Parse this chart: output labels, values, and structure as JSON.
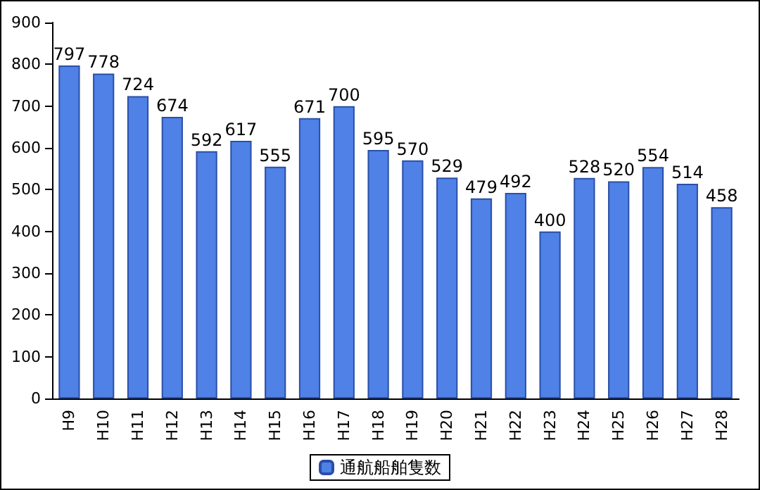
{
  "chart_data": {
    "type": "bar",
    "categories": [
      "H9",
      "H10",
      "H11",
      "H12",
      "H13",
      "H14",
      "H15",
      "H16",
      "H17",
      "H18",
      "H19",
      "H20",
      "H21",
      "H22",
      "H23",
      "H24",
      "H25",
      "H26",
      "H27",
      "H28"
    ],
    "series": [
      {
        "name": "通航船舶隻数",
        "color": "#4f81e6",
        "values": [
          797,
          778,
          724,
          674,
          592,
          617,
          555,
          671,
          700,
          595,
          570,
          529,
          479,
          492,
          400,
          528,
          520,
          554,
          514,
          458
        ]
      }
    ],
    "ylim": [
      0,
      900
    ],
    "yticks": [
      0,
      100,
      200,
      300,
      400,
      500,
      600,
      700,
      800,
      900
    ],
    "grid": false,
    "legend": "bottom",
    "data_labels": true
  }
}
